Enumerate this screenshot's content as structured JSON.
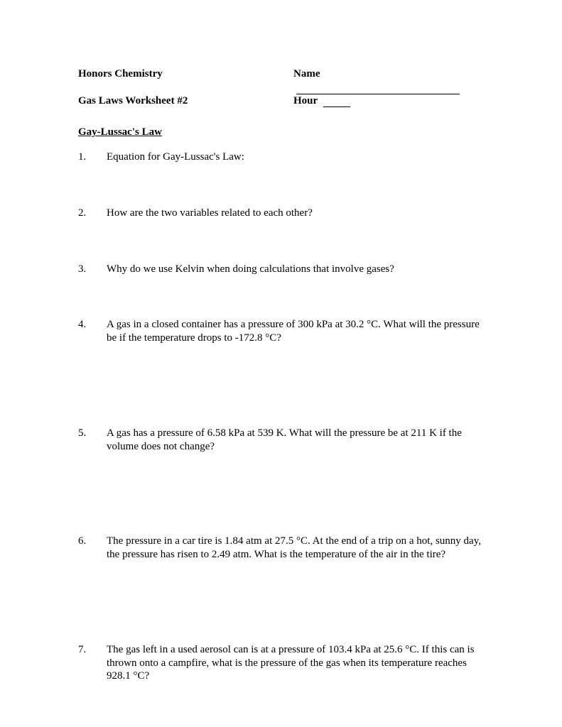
{
  "header": {
    "course": "Honors Chemistry",
    "worksheet": "Gas Laws Worksheet #2",
    "name_label": "Name",
    "hour_label": "Hour"
  },
  "section_title": "Gay-Lussac's Law",
  "questions": [
    {
      "num": "1.",
      "text": "Equation for Gay-Lussac's Law:"
    },
    {
      "num": "2.",
      "text": "How are the two variables related to each other?"
    },
    {
      "num": "3.",
      "text": "Why do we use Kelvin when doing calculations that involve gases?"
    },
    {
      "num": "4.",
      "text": "A gas in a closed container has a pressure of 300 kPa at 30.2 °C.  What will the pressure be if the temperature drops to -172.8 °C?"
    },
    {
      "num": "5.",
      "text": "A gas has a pressure of 6.58 kPa at 539 K.  What will the pressure be at 211 K if the volume does not change?"
    },
    {
      "num": "6.",
      "text": "The pressure in a car tire is 1.84 atm at 27.5 °C.  At the end of a trip on a hot, sunny day, the pressure has risen to 2.49 atm.  What is the temperature of the air in the tire?"
    },
    {
      "num": "7.",
      "text": "The gas left in a used aerosol can is at a pressure of 103.4 kPa at 25.6 °C.  If this can is thrown onto a campfire, what is the pressure of the gas when its temperature reaches 928.1 °C?"
    }
  ]
}
